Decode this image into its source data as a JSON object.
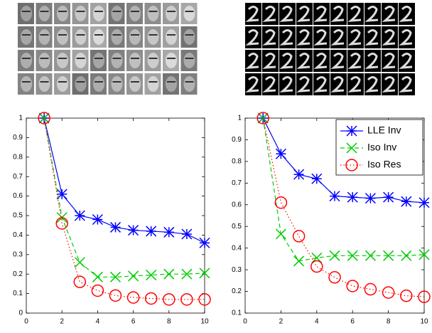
{
  "chart_data": [
    {
      "type": "line",
      "x": [
        1,
        2,
        3,
        4,
        5,
        6,
        7,
        8,
        9,
        10
      ],
      "xlim": [
        0,
        10
      ],
      "xticks": [
        0,
        2,
        4,
        6,
        8,
        10
      ],
      "ylim": [
        0,
        1
      ],
      "yticks": [
        0,
        0.1,
        0.2,
        0.3,
        0.4,
        0.5,
        0.6,
        0.7,
        0.8,
        0.9,
        1
      ],
      "series": [
        {
          "color": "#0000ff",
          "marker": "star",
          "linestyle": "solid",
          "values": [
            1,
            0.61,
            0.5,
            0.48,
            0.44,
            0.425,
            0.42,
            0.415,
            0.405,
            0.36
          ]
        },
        {
          "color": "#00cc00",
          "marker": "x",
          "linestyle": "dashed",
          "values": [
            1,
            0.49,
            0.26,
            0.185,
            0.185,
            0.19,
            0.195,
            0.2,
            0.2,
            0.205
          ]
        },
        {
          "color": "#ff0000",
          "marker": "circle",
          "linestyle": "dotted",
          "values": [
            1,
            0.46,
            0.16,
            0.115,
            0.09,
            0.08,
            0.075,
            0.07,
            0.07,
            0.07
          ]
        }
      ]
    },
    {
      "type": "line",
      "x": [
        1,
        2,
        3,
        4,
        5,
        6,
        7,
        8,
        9,
        10
      ],
      "xlim": [
        0,
        10
      ],
      "xticks": [
        0,
        2,
        4,
        6,
        8,
        10
      ],
      "ylim": [
        0.1,
        1
      ],
      "yticks": [
        0.1,
        0.2,
        0.3,
        0.4,
        0.5,
        0.6,
        0.7,
        0.8,
        0.9,
        1
      ],
      "legend": "upper right",
      "series": [
        {
          "name": "LLE Inv",
          "color": "#0000ff",
          "marker": "star",
          "linestyle": "solid",
          "values": [
            1,
            0.835,
            0.74,
            0.72,
            0.64,
            0.635,
            0.63,
            0.635,
            0.615,
            0.61
          ]
        },
        {
          "name": "Iso Inv",
          "color": "#00cc00",
          "marker": "x",
          "linestyle": "dashed",
          "values": [
            1,
            0.465,
            0.34,
            0.355,
            0.365,
            0.365,
            0.365,
            0.365,
            0.365,
            0.37
          ]
        },
        {
          "name": "Iso Res",
          "color": "#ff0000",
          "marker": "circle",
          "linestyle": "dotted",
          "values": [
            1,
            0.61,
            0.455,
            0.315,
            0.265,
            0.225,
            0.21,
            0.195,
            0.18,
            0.175
          ]
        }
      ]
    }
  ]
}
